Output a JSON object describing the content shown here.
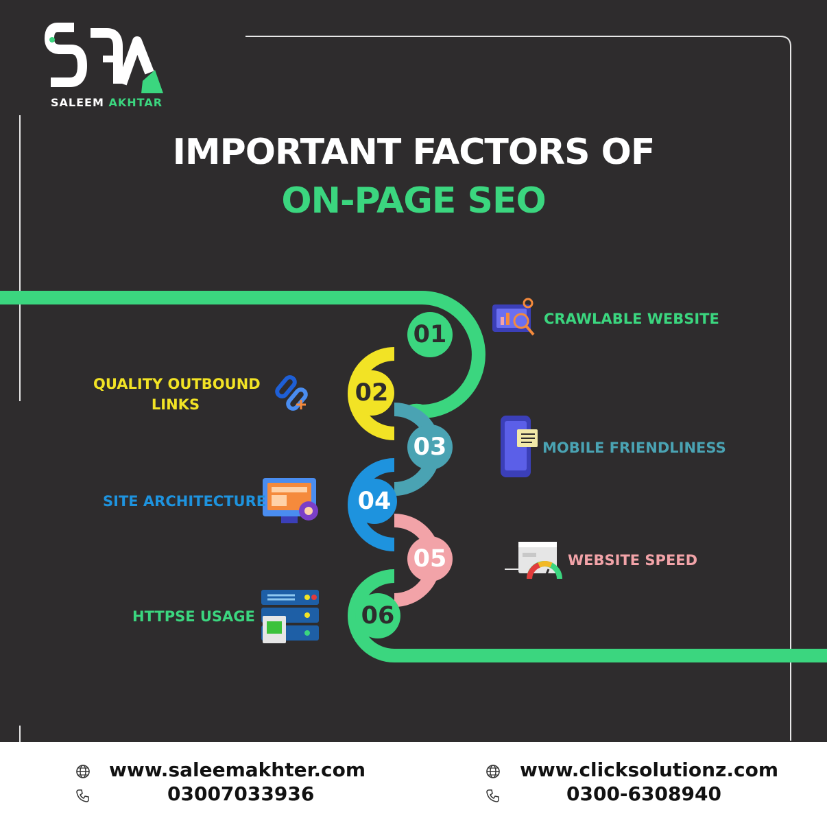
{
  "brand": {
    "logo_letters": "SA",
    "name_first": "SALEEM",
    "name_second": "AKHTAR"
  },
  "title": {
    "line1": "IMPORTANT FACTORS OF",
    "line2": "ON-PAGE SEO"
  },
  "factors": [
    {
      "number": "01",
      "label": "CRAWLABLE WEBSITE",
      "color": "#3bd67f",
      "icon": "seo-analytics-icon"
    },
    {
      "number": "02",
      "label_line1": "QUALITY OUTBOUND",
      "label_line2": "LINKS",
      "color": "#f2e325",
      "icon": "chain-link-icon"
    },
    {
      "number": "03",
      "label": "MOBILE FRIENDLINESS",
      "color": "#4aa3b3",
      "icon": "mobile-phone-icon"
    },
    {
      "number": "04",
      "label": "SITE ARCHITECTURE",
      "color": "#1e93de",
      "icon": "monitor-layout-icon"
    },
    {
      "number": "05",
      "label": "WEBSITE SPEED",
      "color": "#f2a3a8",
      "icon": "speed-gauge-icon"
    },
    {
      "number": "06",
      "label": "HTTPSE USAGE",
      "color": "#3bd67f",
      "icon": "server-icon"
    }
  ],
  "footer": {
    "left": {
      "website": "www.saleemakhter.com",
      "phone": "03007033936"
    },
    "right": {
      "website": "www.clicksolutionz.com",
      "phone": "0300-6308940"
    }
  },
  "colors": {
    "background": "#2e2c2d",
    "accent_green": "#3bd67f",
    "footer_background": "#ffffff"
  }
}
